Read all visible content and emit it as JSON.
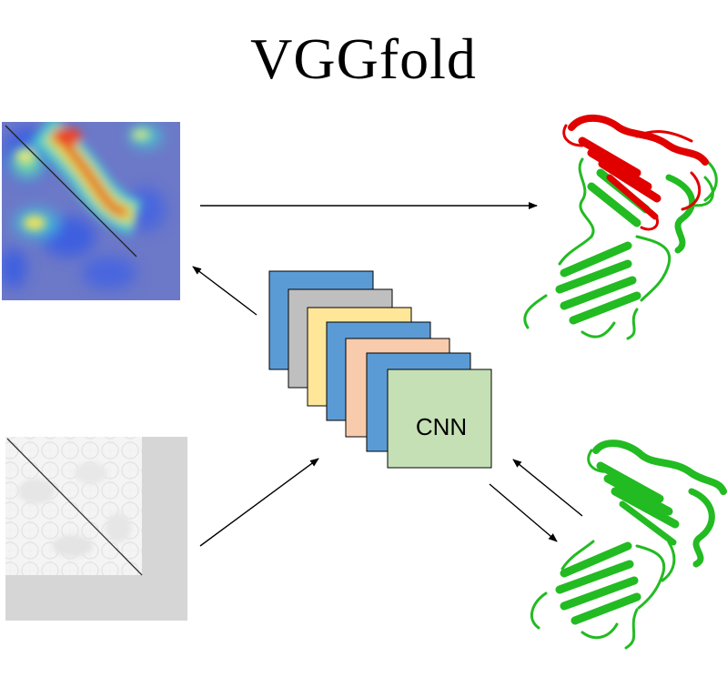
{
  "title": "VGGfold",
  "cnn": {
    "label": "CNN",
    "layer_colors": [
      "#5b9bd5",
      "#bfbfbf",
      "#ffe699",
      "#5b9bd5",
      "#f8cbad",
      "#5b9bd5",
      "#c5e0b4"
    ]
  },
  "colors": {
    "structure_domain_1": "#e00000",
    "structure_domain_2": "#22bb22",
    "heatmap_background": "#6c78c8"
  }
}
